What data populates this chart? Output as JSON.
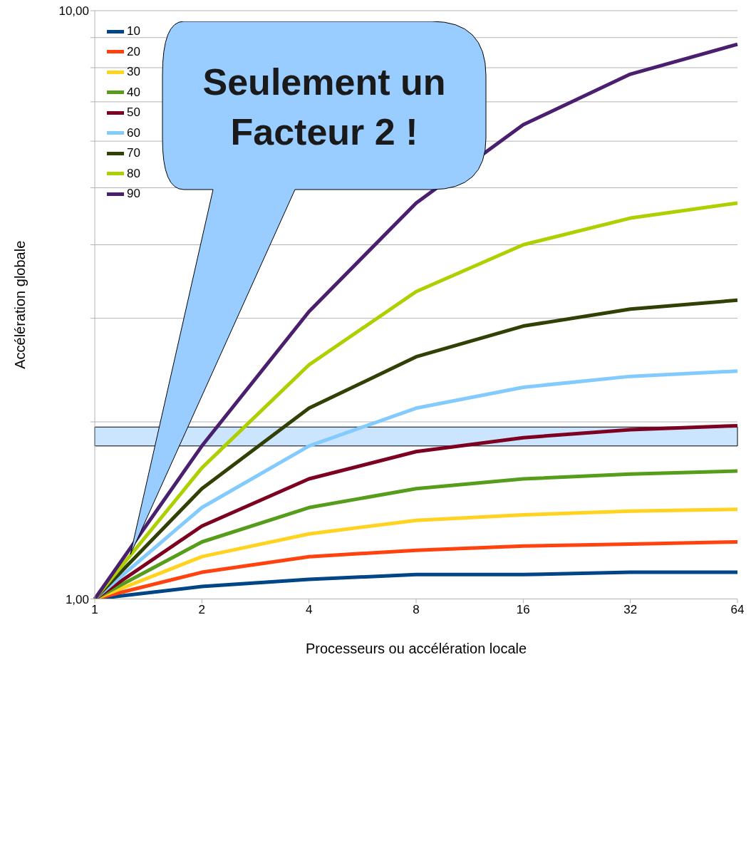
{
  "chart_data": {
    "type": "line",
    "xlabel": "Processeurs ou accélération locale",
    "ylabel": "Accélération globale",
    "categories": [
      "1",
      "2",
      "4",
      "8",
      "16",
      "32",
      "64"
    ],
    "log": "y",
    "ylim": [
      1,
      10
    ],
    "yticks": [
      {
        "value": 1,
        "label": "1,00"
      },
      {
        "value": 2,
        "label": null
      },
      {
        "value": 3,
        "label": null
      },
      {
        "value": 4,
        "label": null
      },
      {
        "value": 5,
        "label": null
      },
      {
        "value": 6,
        "label": null
      },
      {
        "value": 7,
        "label": null
      },
      {
        "value": 8,
        "label": null
      },
      {
        "value": 9,
        "label": null
      },
      {
        "value": 10,
        "label": "10,00"
      }
    ],
    "grid": "y",
    "legend": "top left",
    "marker": "none",
    "line_style": "solid",
    "series": [
      {
        "name": "10",
        "color": "#004586",
        "values": [
          1,
          1.05,
          1.08,
          1.1,
          1.1,
          1.11,
          1.11
        ]
      },
      {
        "name": "20",
        "color": "#ff420e",
        "values": [
          1,
          1.11,
          1.18,
          1.21,
          1.23,
          1.24,
          1.25
        ]
      },
      {
        "name": "30",
        "color": "#ffd320",
        "values": [
          1,
          1.18,
          1.29,
          1.36,
          1.39,
          1.41,
          1.42
        ]
      },
      {
        "name": "40",
        "color": "#579d1c",
        "values": [
          1,
          1.25,
          1.43,
          1.54,
          1.6,
          1.63,
          1.65
        ]
      },
      {
        "name": "50",
        "color": "#7e0021",
        "values": [
          1,
          1.33,
          1.6,
          1.78,
          1.88,
          1.94,
          1.97
        ]
      },
      {
        "name": "60",
        "color": "#83caff",
        "values": [
          1,
          1.43,
          1.82,
          2.11,
          2.29,
          2.39,
          2.44
        ]
      },
      {
        "name": "70",
        "color": "#314004",
        "values": [
          1,
          1.54,
          2.11,
          2.58,
          2.91,
          3.11,
          3.22
        ]
      },
      {
        "name": "80",
        "color": "#aecf00",
        "values": [
          1,
          1.67,
          2.5,
          3.33,
          4,
          4.44,
          4.71
        ]
      },
      {
        "name": "90",
        "color": "#4b1f6f",
        "values": [
          1,
          1.82,
          3.08,
          4.71,
          6.4,
          7.8,
          8.77
        ]
      }
    ],
    "bands": [
      {
        "axis": "y",
        "from": 1.82,
        "to": 1.96,
        "color": "#99ccff"
      }
    ],
    "annotations": [
      "Seulement un Facteur 2 !"
    ]
  }
}
